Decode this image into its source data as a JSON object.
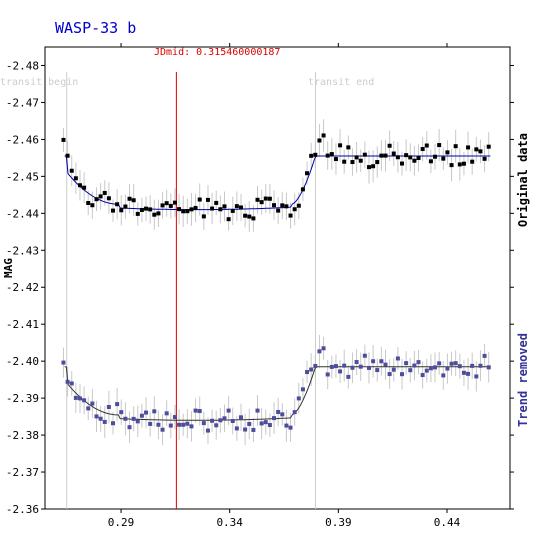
{
  "chart_data": {
    "type": "scatter",
    "title": "WASP-33 b",
    "ylabel": "MAG",
    "xlim": [
      0.255,
      0.469
    ],
    "ylim": [
      -2.485,
      -2.36
    ],
    "y_reversed": true,
    "x_ticks": [
      0.29,
      0.34,
      0.39,
      0.44
    ],
    "x_tick_labels": [
      "0.29",
      "0.34",
      "0.39",
      "0.44"
    ],
    "y_ticks": [
      -2.48,
      -2.47,
      -2.46,
      -2.45,
      -2.44,
      -2.43,
      -2.42,
      -2.41,
      -2.4,
      -2.39,
      -2.38,
      -2.37,
      -2.36
    ],
    "y_tick_labels": [
      "-2.48",
      "-2.47",
      "-2.46",
      "-2.45",
      "-2.44",
      "-2.43",
      "-2.42",
      "-2.41",
      "-2.40",
      "-2.39",
      "-2.38",
      "-2.37",
      "-2.36"
    ],
    "grid": false,
    "markers": {
      "transit_begin": {
        "x": 0.265,
        "label": "transit begin"
      },
      "transit_end": {
        "x": 0.3795,
        "label": "transit end"
      },
      "jdmid": {
        "x": 0.31546,
        "label": "JDmid: 0.315460000187"
      }
    },
    "series": [
      {
        "name": "Original data",
        "color": "#000000",
        "offset": 0.0,
        "model_color": "#0000aa",
        "baseline": -2.4555,
        "depth": 0.0145
      },
      {
        "name": "Trend removed",
        "color": "#4d4d99",
        "offset": 0.0585,
        "model_color": "#333333",
        "baseline": -2.3985,
        "depth": 0.0145
      }
    ],
    "colors": {
      "title": "#0000cc",
      "jdmid_line": "#dd0000",
      "transit_lines": "#cccccc",
      "error_bars": "#c8c8c8",
      "right_label_1": "#000000",
      "right_label_2": "#333399"
    }
  }
}
